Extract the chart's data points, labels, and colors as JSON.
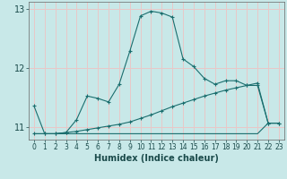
{
  "title": "",
  "xlabel": "Humidex (Indice chaleur)",
  "bg_color": "#c8e8e8",
  "grid_color": "#e8c8c8",
  "line_color": "#1a6e6e",
  "x_ticks": [
    0,
    1,
    2,
    3,
    4,
    5,
    6,
    7,
    8,
    9,
    10,
    11,
    12,
    13,
    14,
    15,
    16,
    17,
    18,
    19,
    20,
    21,
    22,
    23
  ],
  "ylim": [
    10.78,
    13.12
  ],
  "yticks": [
    11,
    12,
    13
  ],
  "series1_x": [
    0,
    1,
    2,
    3,
    4,
    5,
    6,
    7,
    8,
    9,
    10,
    11,
    12,
    13,
    14,
    15,
    16,
    17,
    18,
    19,
    20,
    21,
    22,
    23
  ],
  "series1_y": [
    11.35,
    10.88,
    10.88,
    10.9,
    11.12,
    11.52,
    11.48,
    11.42,
    11.72,
    12.28,
    12.88,
    12.96,
    12.93,
    12.86,
    12.15,
    12.02,
    11.82,
    11.72,
    11.78,
    11.78,
    11.7,
    11.7,
    11.06,
    11.06
  ],
  "series2_x": [
    0,
    1,
    2,
    3,
    4,
    5,
    6,
    7,
    8,
    9,
    10,
    11,
    12,
    13,
    14,
    15,
    16,
    17,
    18,
    19,
    20,
    21,
    22,
    23
  ],
  "series2_y": [
    10.88,
    10.88,
    10.88,
    10.9,
    10.92,
    10.95,
    10.98,
    11.01,
    11.04,
    11.08,
    11.14,
    11.2,
    11.27,
    11.34,
    11.4,
    11.46,
    11.52,
    11.57,
    11.62,
    11.66,
    11.7,
    11.74,
    11.06,
    11.06
  ],
  "series3_x": [
    0,
    21,
    22,
    23
  ],
  "series3_y": [
    10.88,
    10.88,
    11.06,
    11.06
  ]
}
